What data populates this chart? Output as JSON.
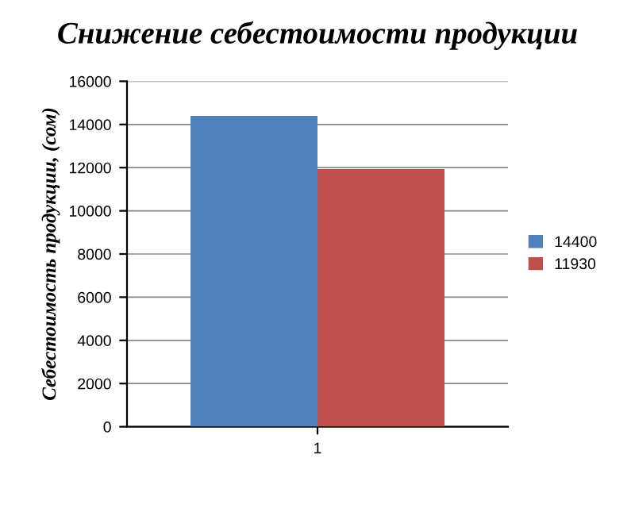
{
  "chart_data": {
    "type": "bar",
    "title": "Снижение себестоимости продукции",
    "ylabel": "Себестоимость продукции, (сом)",
    "categories": [
      "1"
    ],
    "series": [
      {
        "name": "14400",
        "color": "#4f81bd",
        "values": [
          14400
        ]
      },
      {
        "name": "11930",
        "color": "#c0504d",
        "values": [
          11930
        ]
      }
    ],
    "ylim": [
      0,
      16000
    ],
    "yticks": [
      0,
      2000,
      4000,
      6000,
      8000,
      10000,
      12000,
      14000,
      16000
    ],
    "grid": "y",
    "legend": "right"
  }
}
